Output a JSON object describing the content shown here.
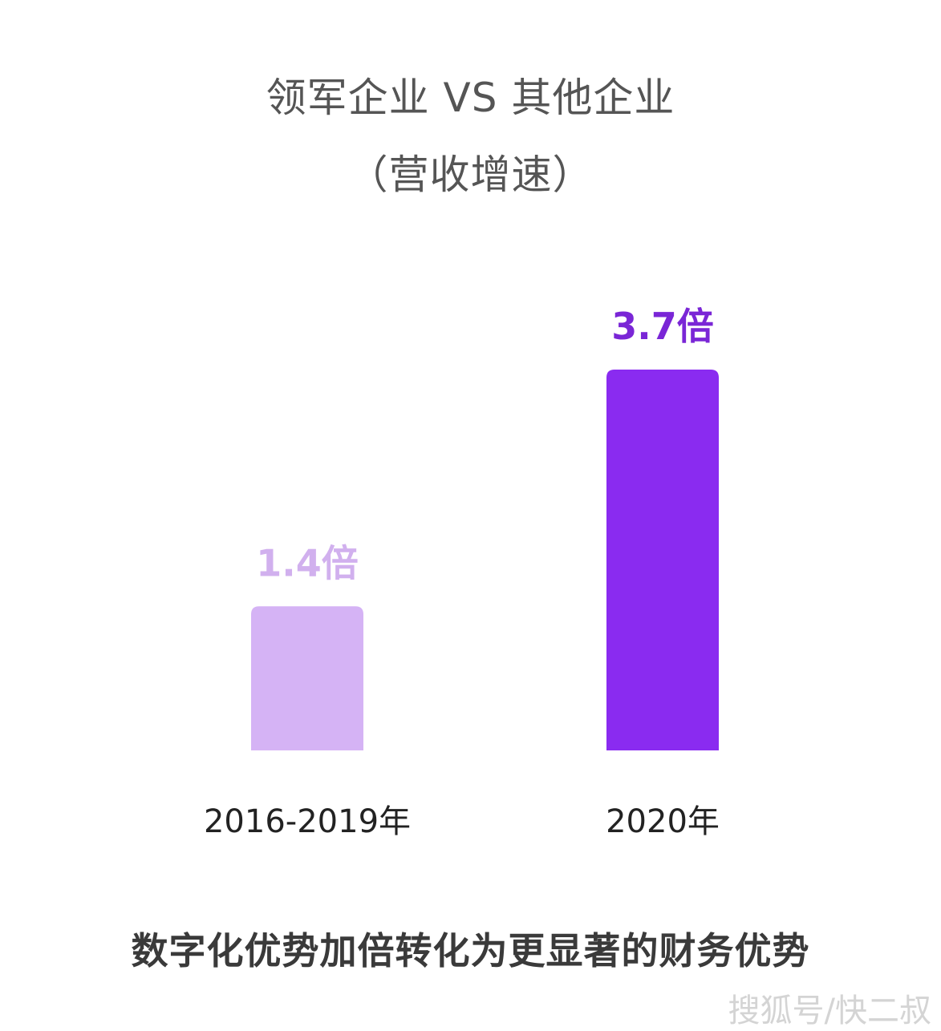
{
  "title_line1": "领军企业 VS 其他企业",
  "title_line2": "（营收增速）",
  "caption": "数字化优势加倍转化为更显著的财务优势",
  "watermark": "搜狐号/快二叔",
  "colors": {
    "bar_light": "#d5b3f5",
    "bar_dark": "#8a2bf0",
    "label_light": "#d1b0ee",
    "label_dark": "#7a26d6"
  },
  "chart_data": {
    "type": "bar",
    "title": "领军企业 VS 其他企业",
    "subtitle": "（营收增速）",
    "categories": [
      "2016-2019年",
      "2020年"
    ],
    "values": [
      1.4,
      3.7
    ],
    "value_labels": [
      "1.4倍",
      "3.7倍"
    ],
    "xlabel": "",
    "ylabel": "",
    "ylim": [
      0,
      3.7
    ],
    "grid": false,
    "legend": "none"
  }
}
